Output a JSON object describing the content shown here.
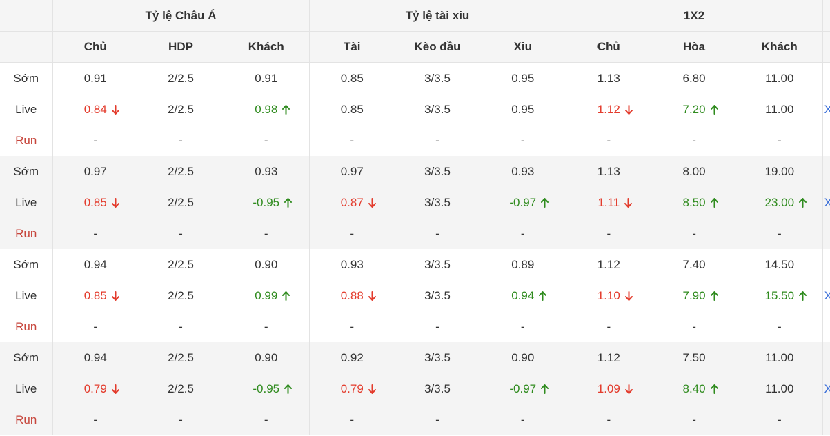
{
  "header": {
    "groups": [
      "Tỷ lệ Châu Á",
      "Tỷ lệ tài xiu",
      "1X2"
    ],
    "columns": [
      "Chủ",
      "HDP",
      "Khách",
      "Tài",
      "Kèo đầu",
      "Xiu",
      "Chủ",
      "Hòa",
      "Khách"
    ]
  },
  "colors": {
    "down": "#e33b2c",
    "up": "#2f8b1e",
    "run_label": "#c7463c",
    "row_grey": "#f4f4f4"
  },
  "blocks": [
    {
      "rows": [
        {
          "label": "Sớm",
          "cells": [
            {
              "v": "0.91"
            },
            {
              "v": "2/2.5"
            },
            {
              "v": "0.91"
            },
            {
              "v": "0.85"
            },
            {
              "v": "3/3.5"
            },
            {
              "v": "0.95"
            },
            {
              "v": "1.13"
            },
            {
              "v": "6.80"
            },
            {
              "v": "11.00"
            }
          ]
        },
        {
          "label": "Live",
          "more": "X",
          "cells": [
            {
              "v": "0.84",
              "d": "down"
            },
            {
              "v": "2/2.5"
            },
            {
              "v": "0.98",
              "d": "up"
            },
            {
              "v": "0.85"
            },
            {
              "v": "3/3.5"
            },
            {
              "v": "0.95"
            },
            {
              "v": "1.12",
              "d": "down"
            },
            {
              "v": "7.20",
              "d": "up"
            },
            {
              "v": "11.00"
            }
          ]
        },
        {
          "label": "Run",
          "cells": [
            {
              "v": "-"
            },
            {
              "v": "-"
            },
            {
              "v": "-"
            },
            {
              "v": "-"
            },
            {
              "v": "-"
            },
            {
              "v": "-"
            },
            {
              "v": "-"
            },
            {
              "v": "-"
            },
            {
              "v": "-"
            }
          ]
        }
      ]
    },
    {
      "rows": [
        {
          "label": "Sớm",
          "cells": [
            {
              "v": "0.97"
            },
            {
              "v": "2/2.5"
            },
            {
              "v": "0.93"
            },
            {
              "v": "0.97"
            },
            {
              "v": "3/3.5"
            },
            {
              "v": "0.93"
            },
            {
              "v": "1.13"
            },
            {
              "v": "8.00"
            },
            {
              "v": "19.00"
            }
          ]
        },
        {
          "label": "Live",
          "more": "X",
          "cells": [
            {
              "v": "0.85",
              "d": "down"
            },
            {
              "v": "2/2.5"
            },
            {
              "v": "-0.95",
              "d": "up"
            },
            {
              "v": "0.87",
              "d": "down"
            },
            {
              "v": "3/3.5"
            },
            {
              "v": "-0.97",
              "d": "up"
            },
            {
              "v": "1.11",
              "d": "down"
            },
            {
              "v": "8.50",
              "d": "up"
            },
            {
              "v": "23.00",
              "d": "up"
            }
          ]
        },
        {
          "label": "Run",
          "cells": [
            {
              "v": "-"
            },
            {
              "v": "-"
            },
            {
              "v": "-"
            },
            {
              "v": "-"
            },
            {
              "v": "-"
            },
            {
              "v": "-"
            },
            {
              "v": "-"
            },
            {
              "v": "-"
            },
            {
              "v": "-"
            }
          ]
        }
      ]
    },
    {
      "rows": [
        {
          "label": "Sớm",
          "cells": [
            {
              "v": "0.94"
            },
            {
              "v": "2/2.5"
            },
            {
              "v": "0.90"
            },
            {
              "v": "0.93"
            },
            {
              "v": "3/3.5"
            },
            {
              "v": "0.89"
            },
            {
              "v": "1.12"
            },
            {
              "v": "7.40"
            },
            {
              "v": "14.50"
            }
          ]
        },
        {
          "label": "Live",
          "more": "X",
          "cells": [
            {
              "v": "0.85",
              "d": "down"
            },
            {
              "v": "2/2.5"
            },
            {
              "v": "0.99",
              "d": "up"
            },
            {
              "v": "0.88",
              "d": "down"
            },
            {
              "v": "3/3.5"
            },
            {
              "v": "0.94",
              "d": "up"
            },
            {
              "v": "1.10",
              "d": "down"
            },
            {
              "v": "7.90",
              "d": "up"
            },
            {
              "v": "15.50",
              "d": "up"
            }
          ]
        },
        {
          "label": "Run",
          "cells": [
            {
              "v": "-"
            },
            {
              "v": "-"
            },
            {
              "v": "-"
            },
            {
              "v": "-"
            },
            {
              "v": "-"
            },
            {
              "v": "-"
            },
            {
              "v": "-"
            },
            {
              "v": "-"
            },
            {
              "v": "-"
            }
          ]
        }
      ]
    },
    {
      "rows": [
        {
          "label": "Sớm",
          "cells": [
            {
              "v": "0.94"
            },
            {
              "v": "2/2.5"
            },
            {
              "v": "0.90"
            },
            {
              "v": "0.92"
            },
            {
              "v": "3/3.5"
            },
            {
              "v": "0.90"
            },
            {
              "v": "1.12"
            },
            {
              "v": "7.50"
            },
            {
              "v": "11.00"
            }
          ]
        },
        {
          "label": "Live",
          "more": "X",
          "cells": [
            {
              "v": "0.79",
              "d": "down"
            },
            {
              "v": "2/2.5"
            },
            {
              "v": "-0.95",
              "d": "up"
            },
            {
              "v": "0.79",
              "d": "down"
            },
            {
              "v": "3/3.5"
            },
            {
              "v": "-0.97",
              "d": "up"
            },
            {
              "v": "1.09",
              "d": "down"
            },
            {
              "v": "8.40",
              "d": "up"
            },
            {
              "v": "11.00"
            }
          ]
        },
        {
          "label": "Run",
          "cells": [
            {
              "v": "-"
            },
            {
              "v": "-"
            },
            {
              "v": "-"
            },
            {
              "v": "-"
            },
            {
              "v": "-"
            },
            {
              "v": "-"
            },
            {
              "v": "-"
            },
            {
              "v": "-"
            },
            {
              "v": "-"
            }
          ]
        }
      ]
    }
  ]
}
